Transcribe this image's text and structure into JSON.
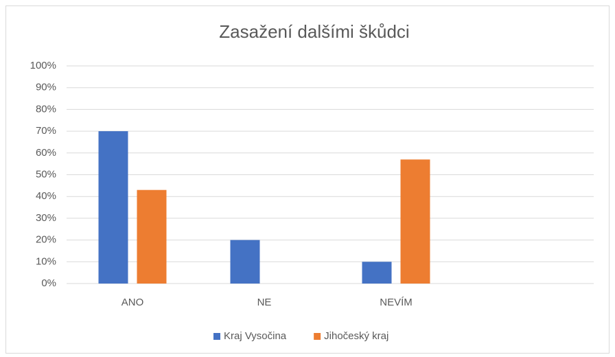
{
  "chart_data": {
    "type": "bar",
    "title": "Zasažení dalšími škůdci",
    "categories": [
      "ANO",
      "NE",
      "NEVÍM",
      null
    ],
    "series": [
      {
        "name": "Kraj Vysočina",
        "color": "#4472c4",
        "values": [
          70,
          20,
          10,
          null
        ]
      },
      {
        "name": "Jihočeský kraj",
        "color": "#ed7d31",
        "values": [
          43,
          0,
          57,
          null
        ]
      }
    ],
    "ylim": [
      0,
      100
    ],
    "yticks": [
      {
        "value": 0,
        "label": "0%"
      },
      {
        "value": 10,
        "label": "10%"
      },
      {
        "value": 20,
        "label": "20%"
      },
      {
        "value": 30,
        "label": "30%"
      },
      {
        "value": 40,
        "label": "40%"
      },
      {
        "value": 50,
        "label": "50%"
      },
      {
        "value": 60,
        "label": "60%"
      },
      {
        "value": 70,
        "label": "70%"
      },
      {
        "value": 80,
        "label": "80%"
      },
      {
        "value": 90,
        "label": "90%"
      },
      {
        "value": 100,
        "label": "100%"
      }
    ],
    "grid": true,
    "legend": "bottom"
  }
}
